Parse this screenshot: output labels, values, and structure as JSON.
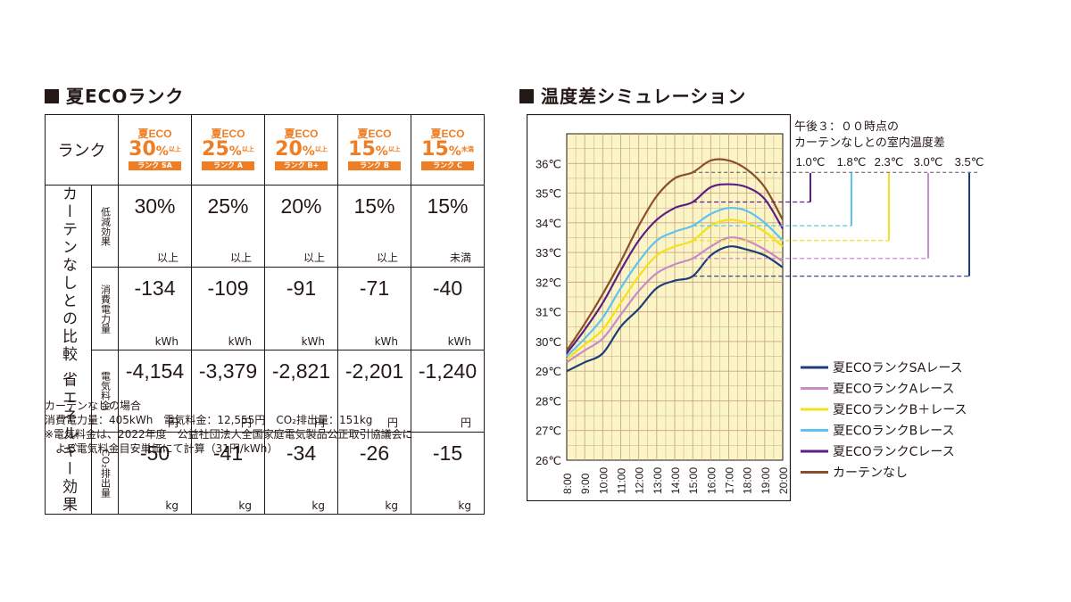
{
  "left": {
    "title": "夏ECOランク",
    "rank_header": "ランク",
    "side_label": "カーテンなしとの比較 省エネルギー効果",
    "ranks": [
      {
        "top": "夏ECO",
        "pct": "30",
        "unit": "%",
        "qual": "以上",
        "tag": "ランク SA"
      },
      {
        "top": "夏ECO",
        "pct": "25",
        "unit": "%",
        "qual": "以上",
        "tag": "ランク A"
      },
      {
        "top": "夏ECO",
        "pct": "20",
        "unit": "%",
        "qual": "以上",
        "tag": "ランク B+"
      },
      {
        "top": "夏ECO",
        "pct": "15",
        "unit": "%",
        "qual": "以上",
        "tag": "ランク B"
      },
      {
        "top": "夏ECO",
        "pct": "15",
        "unit": "%",
        "qual": "未満",
        "tag": "ランク C"
      }
    ],
    "rows": [
      {
        "label": "低減効果",
        "unit": "",
        "values": [
          {
            "big": "30%",
            "small": "以上"
          },
          {
            "big": "25%",
            "small": "以上"
          },
          {
            "big": "20%",
            "small": "以上"
          },
          {
            "big": "15%",
            "small": "以上"
          },
          {
            "big": "15%",
            "small": "未満"
          }
        ]
      },
      {
        "label": "消費電力量",
        "unit": "",
        "values": [
          {
            "big": "-134",
            "small": "kWh"
          },
          {
            "big": "-109",
            "small": "kWh"
          },
          {
            "big": "-91",
            "small": "kWh"
          },
          {
            "big": "-71",
            "small": "kWh"
          },
          {
            "big": "-40",
            "small": "kWh"
          }
        ]
      },
      {
        "label": "電気料金",
        "unit": "",
        "values": [
          {
            "big": "-4,154",
            "small": "円"
          },
          {
            "big": "-3,379",
            "small": "円"
          },
          {
            "big": "-2,821",
            "small": "円"
          },
          {
            "big": "-2,201",
            "small": "円"
          },
          {
            "big": "-1,240",
            "small": "円"
          }
        ]
      },
      {
        "label": "CO₂排出量",
        "unit": "",
        "values": [
          {
            "big": "-50",
            "small": "kg"
          },
          {
            "big": "-41",
            "small": "kg"
          },
          {
            "big": "-34",
            "small": "kg"
          },
          {
            "big": "-26",
            "small": "kg"
          },
          {
            "big": "-15",
            "small": "kg"
          }
        ]
      }
    ],
    "notes": [
      "カーテンなしの場合",
      "消費電力量：405kWh　電気料金：12,555円　CO₂排出量：151kg",
      "※電気料金は、2022年度　公益社団法人全国家庭電気製品公正取引協議会に",
      "　よる電気料金目安単価にて計算（31円/kWh）"
    ],
    "accent_color": "#ee7d23"
  },
  "chart_data": {
    "type": "line",
    "title": "温度差シミュレーション",
    "x": [
      "8:00",
      "9:00",
      "10:00",
      "11:00",
      "12:00",
      "13:00",
      "14:00",
      "15:00",
      "16:00",
      "17:00",
      "18:00",
      "19:00",
      "20:00"
    ],
    "ylim": [
      26,
      37
    ],
    "yticks": [
      "26℃",
      "27℃",
      "28℃",
      "29℃",
      "30℃",
      "31℃",
      "32℃",
      "33℃",
      "34℃",
      "35℃",
      "36℃"
    ],
    "ytick_values": [
      26,
      27,
      28,
      29,
      30,
      31,
      32,
      33,
      34,
      35,
      36
    ],
    "annotation_title": [
      "午後３：００時点の",
      "カーテンなしとの室内温度差"
    ],
    "diff_labels": [
      "1.0℃",
      "1.8℃",
      "2.3℃",
      "3.0℃",
      "3.5℃"
    ],
    "series": [
      {
        "name": "夏ECOランクSAレース",
        "color": "#1d3c7a",
        "diff_index": 4,
        "values": [
          29.0,
          29.3,
          29.6,
          30.5,
          31.1,
          31.8,
          32.05,
          32.2,
          32.9,
          33.2,
          33.1,
          32.9,
          32.5
        ]
      },
      {
        "name": "夏ECOランクAレース",
        "color": "#c98ac8",
        "diff_index": 3,
        "values": [
          29.3,
          29.7,
          30.1,
          30.9,
          31.7,
          32.3,
          32.6,
          32.8,
          33.2,
          33.5,
          33.4,
          33.1,
          32.7
        ]
      },
      {
        "name": "夏ECOランクB＋レース",
        "color": "#f4e01b",
        "diff_index": 2,
        "values": [
          29.4,
          29.9,
          30.4,
          31.3,
          32.2,
          32.9,
          33.2,
          33.4,
          33.9,
          34.1,
          34.0,
          33.7,
          33.2
        ]
      },
      {
        "name": "夏ECOランクBレース",
        "color": "#5ec3ef",
        "diff_index": 1,
        "values": [
          29.5,
          30.1,
          30.8,
          31.8,
          32.7,
          33.4,
          33.7,
          33.9,
          34.3,
          34.5,
          34.4,
          34.0,
          33.4
        ]
      },
      {
        "name": "夏ECOランクCレース",
        "color": "#5b1f86",
        "diff_index": 0,
        "values": [
          29.6,
          30.4,
          31.3,
          32.4,
          33.4,
          34.1,
          34.5,
          34.7,
          35.2,
          35.3,
          35.2,
          34.8,
          33.8
        ]
      },
      {
        "name": "カーテンなし",
        "color": "#8d4d2a",
        "diff_index": null,
        "values": [
          29.7,
          30.6,
          31.6,
          32.7,
          33.9,
          34.9,
          35.5,
          35.7,
          36.1,
          36.1,
          35.8,
          35.2,
          34.1
        ]
      }
    ],
    "grid": true,
    "plot_bg": "#fbf5c6",
    "grid_color": "#c9a48a",
    "legend": "bottom-right"
  }
}
